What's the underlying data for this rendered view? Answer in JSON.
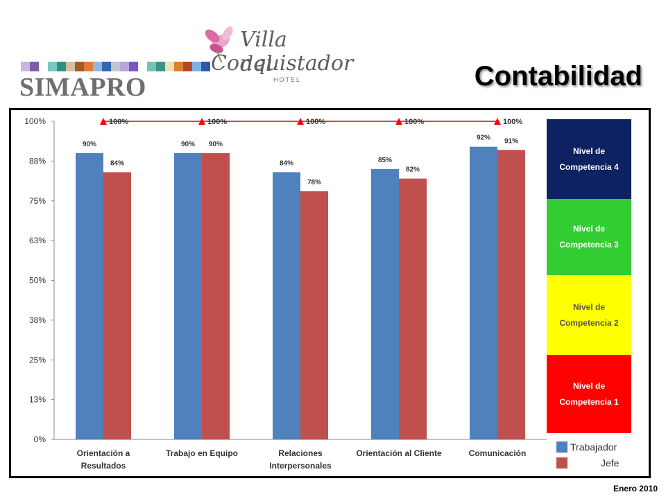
{
  "header": {
    "brand": "SIMAPRO",
    "logo_line1": "Villa del",
    "logo_line2": "Conquistador",
    "logo_sub": "HOTEL",
    "title": "Contabilidad",
    "stripe_colors": [
      "#c8b6e0",
      "#7a5fa8",
      "#ffffff",
      "#7cc8c0",
      "#2f8f86",
      "#d5bfa0",
      "#a35a28",
      "#e07a3a",
      "#8fb8e0",
      "#2f67b0",
      "#c4c4c4",
      "#b9a6dc",
      "#8053c2",
      "#ffffff",
      "#6fc4bb",
      "#3c9487",
      "#efe1b3",
      "#d8812e",
      "#b5482a",
      "#7ab3e0",
      "#2d5aa8"
    ]
  },
  "footer": {
    "date": "Enero 2010"
  },
  "legend": {
    "levels": [
      {
        "label": "Nivel de Competencia 4",
        "color": "#0e2160"
      },
      {
        "label": "Nivel de Competencia 3",
        "color": "#33cc33"
      },
      {
        "label": "Nivel de Competencia 2",
        "color": "#ffff00"
      },
      {
        "label": "Nivel de Competencia 1",
        "color": "#ff0000"
      }
    ],
    "series": [
      {
        "label": "Trabajador",
        "color": "#4f81bd"
      },
      {
        "label": "Jefe",
        "color": "#c0504d"
      }
    ]
  },
  "chart_data": {
    "type": "bar",
    "categories": [
      "Orientación a Resultados",
      "Trabajo en Equipo",
      "Relaciones Interpersonales",
      "Orientación al Cliente",
      "Comunicación"
    ],
    "category_lines": [
      [
        "Orientación a",
        "Resultados"
      ],
      [
        "Trabajo en Equipo"
      ],
      [
        "Relaciones",
        "Interpersonales"
      ],
      [
        "Orientación al Cliente"
      ],
      [
        "Comunicación"
      ]
    ],
    "series": [
      {
        "name": "Trabajador",
        "values": [
          90,
          90,
          84,
          85,
          92
        ],
        "labels": [
          "90%",
          "90%",
          "84%",
          "85%",
          "92%"
        ],
        "color": "#4f81bd"
      },
      {
        "name": "Jefe",
        "values": [
          84,
          90,
          78,
          82,
          91
        ],
        "labels": [
          "84%",
          "90%",
          "78%",
          "82%",
          "91%"
        ],
        "color": "#c0504d"
      }
    ],
    "target": {
      "values": [
        100,
        100,
        100,
        100,
        100
      ],
      "labels": [
        "100%",
        "100%",
        "100%",
        "100%",
        "100%"
      ],
      "color": "#ff0000",
      "line_color": "#c0504d"
    },
    "yticks": [
      "0%",
      "13%",
      "25%",
      "38%",
      "50%",
      "63%",
      "75%",
      "88%",
      "100%"
    ],
    "ylim": [
      0,
      100
    ],
    "grid": false
  }
}
